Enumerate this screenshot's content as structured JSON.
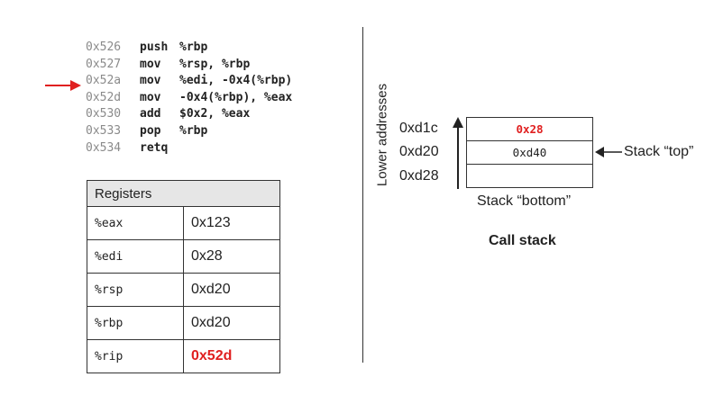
{
  "code": [
    {
      "addr": "0x526",
      "op": "push",
      "args": "%rbp"
    },
    {
      "addr": "0x527",
      "op": "mov",
      "args": "%rsp, %rbp"
    },
    {
      "addr": "0x52a",
      "op": "mov",
      "args": "%edi, -0x4(%rbp)"
    },
    {
      "addr": "0x52d",
      "op": "mov",
      "args": "-0x4(%rbp), %eax"
    },
    {
      "addr": "0x530",
      "op": "add",
      "args": "$0x2, %eax"
    },
    {
      "addr": "0x533",
      "op": "pop",
      "args": "%rbp"
    },
    {
      "addr": "0x534",
      "op": "retq",
      "args": ""
    }
  ],
  "registers": {
    "header": "Registers",
    "rows": [
      {
        "name": "%eax",
        "value": "0x123"
      },
      {
        "name": "%edi",
        "value": "0x28"
      },
      {
        "name": "%rsp",
        "value": "0xd20"
      },
      {
        "name": "%rbp",
        "value": "0xd20"
      },
      {
        "name": "%rip",
        "value": "0x52d"
      }
    ]
  },
  "stack": {
    "axis_label": "Lower addresses",
    "addresses": [
      "0xd1c",
      "0xd20",
      "0xd28"
    ],
    "cells": [
      "0x28",
      "0xd40",
      ""
    ],
    "top_label": "Stack “top”",
    "bottom_label": "Stack “bottom”",
    "caption": "Call stack"
  },
  "colors": {
    "highlight": "#e02020",
    "header_bg": "#e6e6e6",
    "line": "#333333"
  }
}
